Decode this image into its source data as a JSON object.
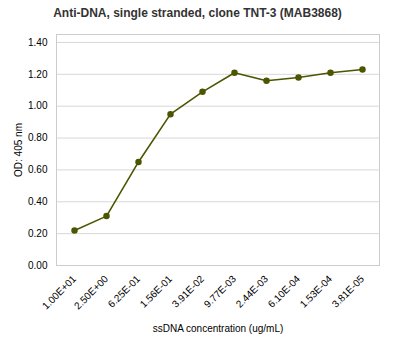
{
  "chart_data": {
    "type": "line",
    "title": "Anti-DNA, single stranded, clone TNT-3 (MAB3868)",
    "xlabel": "ssDNA concentration (ug/mL)",
    "ylabel": "OD: 405 nm",
    "categories": [
      "1.00E+01",
      "2.50E+00",
      "6.25E-01",
      "1.56E-01",
      "3.91E-02",
      "9.77E-03",
      "2.44E-03",
      "6.10E-04",
      "1.53E-04",
      "3.81E-05"
    ],
    "values": [
      0.22,
      0.31,
      0.65,
      0.95,
      1.09,
      1.21,
      1.16,
      1.18,
      1.21,
      1.23
    ],
    "color": "#4d5500",
    "marker": "circle",
    "ylim": [
      0.0,
      1.45
    ],
    "yticks": [
      {
        "value": 0.0,
        "label": "0.00"
      },
      {
        "value": 0.2,
        "label": "0.20"
      },
      {
        "value": 0.4,
        "label": "0.40"
      },
      {
        "value": 0.6,
        "label": "0.60"
      },
      {
        "value": 0.8,
        "label": "0.80"
      },
      {
        "value": 1.0,
        "label": "1.00"
      },
      {
        "value": 1.2,
        "label": "1.20"
      },
      {
        "value": 1.4,
        "label": "1.40"
      }
    ],
    "grid": true
  }
}
